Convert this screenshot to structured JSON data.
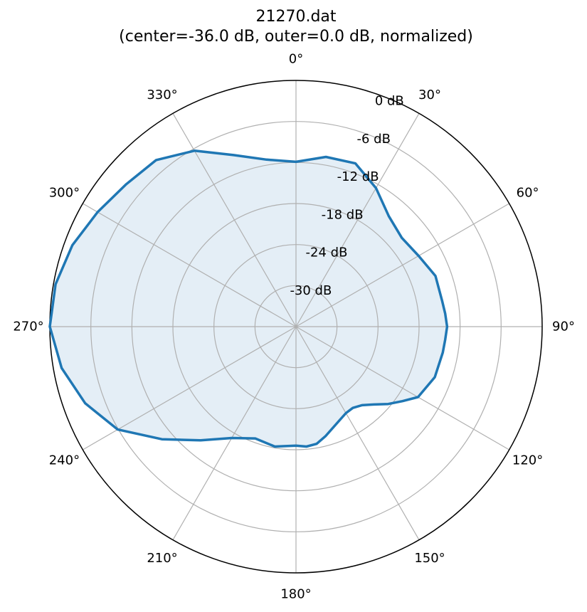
{
  "title_line1": "21270.dat",
  "title_line2": "(center=-36.0 dB, outer=0.0 dB, normalized)",
  "chart_data": {
    "type": "line",
    "projection": "polar",
    "theta_zero": "top",
    "theta_direction": "clockwise",
    "r_center_db": -36.0,
    "r_outer_db": 0.0,
    "grid": true,
    "angle_ticks": [
      0,
      30,
      60,
      90,
      120,
      150,
      180,
      210,
      240,
      270,
      300,
      330
    ],
    "angle_tick_labels": [
      "0°",
      "30°",
      "60°",
      "90°",
      "120°",
      "150°",
      "180°",
      "210°",
      "240°",
      "270°",
      "300°",
      "330°"
    ],
    "radial_ticks": [
      0,
      -6,
      -12,
      -18,
      -24,
      -30
    ],
    "radial_tick_labels": [
      "0 dB",
      "-6 dB",
      "-12 dB",
      "-18 dB",
      "-24 dB",
      "-30 dB"
    ],
    "series": [
      {
        "color": "#1f77b4",
        "fill_color": "#1f77b4",
        "fill_opacity": 0.12,
        "points": [
          {
            "angle": 0,
            "db": -11.9
          },
          {
            "angle": 10,
            "db": -10.8
          },
          {
            "angle": 20,
            "db": -10.6
          },
          {
            "angle": 30,
            "db": -12.6
          },
          {
            "angle": 40,
            "db": -14.9
          },
          {
            "angle": 50,
            "db": -15.8
          },
          {
            "angle": 60,
            "db": -15.3
          },
          {
            "angle": 70,
            "db": -14.3
          },
          {
            "angle": 80,
            "db": -14.3
          },
          {
            "angle": 85,
            "db": -14.1
          },
          {
            "angle": 90,
            "db": -13.9
          },
          {
            "angle": 95,
            "db": -14.1
          },
          {
            "angle": 100,
            "db": -14.2
          },
          {
            "angle": 110,
            "db": -14.4
          },
          {
            "angle": 120,
            "db": -15.4
          },
          {
            "angle": 125,
            "db": -17.0
          },
          {
            "angle": 130,
            "db": -18.4
          },
          {
            "angle": 135,
            "db": -19.9
          },
          {
            "angle": 140,
            "db": -21.0
          },
          {
            "angle": 145,
            "db": -21.5
          },
          {
            "angle": 150,
            "db": -21.4
          },
          {
            "angle": 155,
            "db": -20.9
          },
          {
            "angle": 165,
            "db": -19.4
          },
          {
            "angle": 170,
            "db": -18.6
          },
          {
            "angle": 175,
            "db": -18.4
          },
          {
            "angle": 180,
            "db": -18.6
          },
          {
            "angle": 190,
            "db": -18.2
          },
          {
            "angle": 200,
            "db": -18.6
          },
          {
            "angle": 210,
            "db": -17.2
          },
          {
            "angle": 220,
            "db": -14.3
          },
          {
            "angle": 230,
            "db": -10.4
          },
          {
            "angle": 240,
            "db": -5.9
          },
          {
            "angle": 250,
            "db": -3.2
          },
          {
            "angle": 260,
            "db": -1.2
          },
          {
            "angle": 270,
            "db": 0.0
          },
          {
            "angle": 280,
            "db": -0.3
          },
          {
            "angle": 290,
            "db": -1.2
          },
          {
            "angle": 300,
            "db": -2.5
          },
          {
            "angle": 310,
            "db": -3.6
          },
          {
            "angle": 320,
            "db": -4.2
          },
          {
            "angle": 330,
            "db": -6.3
          },
          {
            "angle": 340,
            "db": -9.3
          },
          {
            "angle": 350,
            "db": -11.2
          }
        ]
      }
    ]
  }
}
